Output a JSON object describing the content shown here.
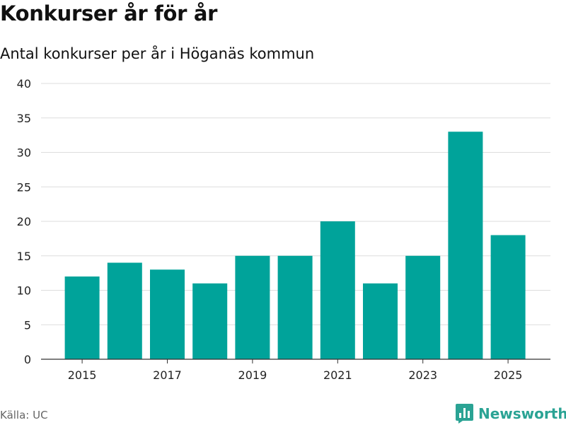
{
  "header": {
    "title": "Konkurser år för år",
    "subtitle": "Antal konkurser per år i Höganäs kommun"
  },
  "footer": {
    "source": "Källa: UC",
    "brand": "Newsworthy",
    "brand_icon": "bar-chart-icon"
  },
  "colors": {
    "bar": "#00a39a",
    "grid": "#dddddd",
    "axis": "#333333",
    "brand": "#2aa394"
  },
  "chart_data": {
    "type": "bar",
    "title": "Konkurser år för år",
    "subtitle": "Antal konkurser per år i Höganäs kommun",
    "categories": [
      "2015",
      "2016",
      "2017",
      "2018",
      "2019",
      "2020",
      "2021",
      "2022",
      "2023",
      "2024",
      "2025"
    ],
    "values": [
      12,
      14,
      13,
      11,
      15,
      15,
      20,
      11,
      15,
      33,
      18
    ],
    "x_tick_labels": [
      "2015",
      "2017",
      "2019",
      "2021",
      "2023",
      "2025"
    ],
    "y_ticks": [
      0,
      5,
      10,
      15,
      20,
      25,
      30,
      35,
      40
    ],
    "ylim": [
      0,
      40
    ],
    "xlabel": "",
    "ylabel": "",
    "grid": true,
    "legend": "none"
  }
}
